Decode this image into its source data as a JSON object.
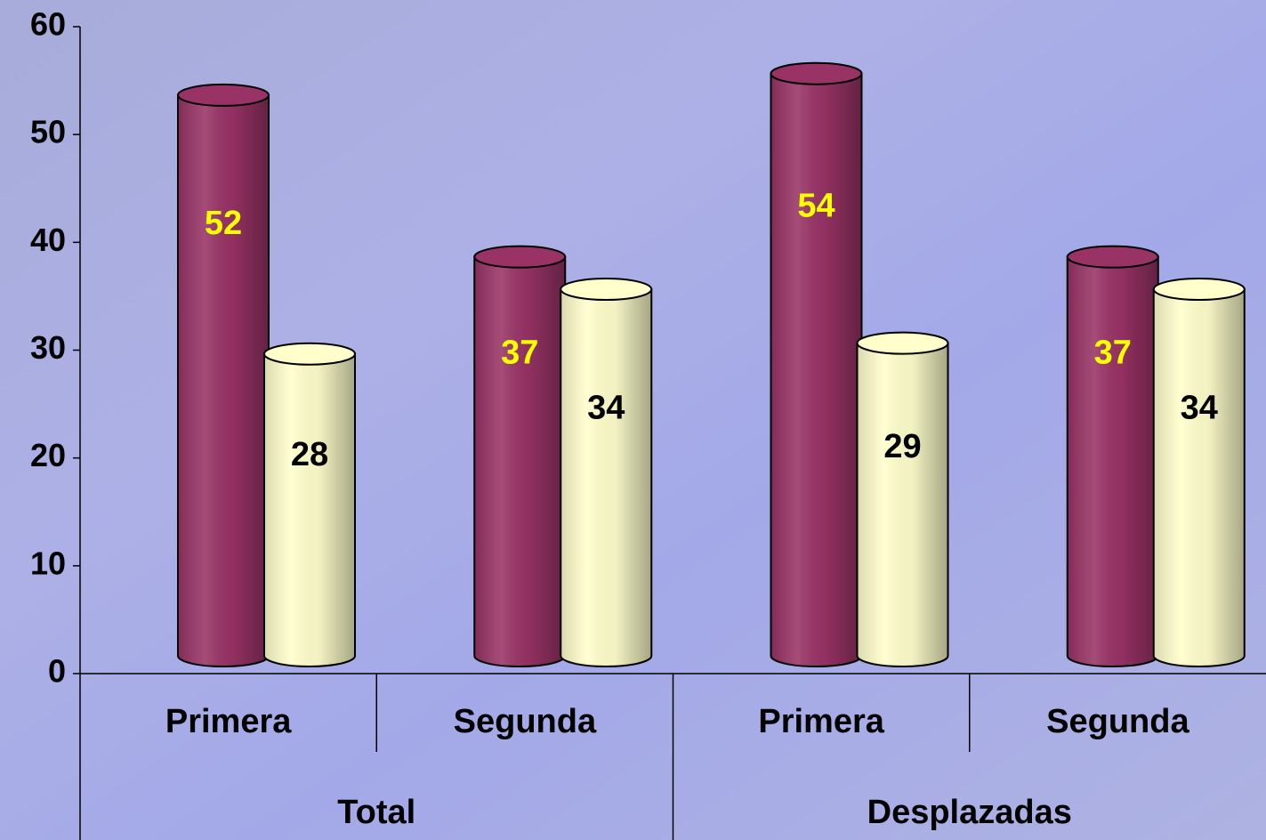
{
  "chart_data": {
    "type": "bar",
    "groups": [
      "Total",
      "Desplazadas"
    ],
    "categories": [
      "Primera",
      "Segunda",
      "Primera",
      "Segunda"
    ],
    "series": [
      {
        "color": "#993366",
        "label_color": "#ffff00",
        "values": [
          52,
          37,
          54,
          37
        ]
      },
      {
        "color": "#ffffcc",
        "label_color": "#000000",
        "values": [
          28,
          34,
          29,
          34
        ]
      }
    ],
    "ylim": [
      0,
      60
    ],
    "yticks": [
      0,
      10,
      20,
      30,
      40,
      50,
      60
    ],
    "grid": false
  }
}
